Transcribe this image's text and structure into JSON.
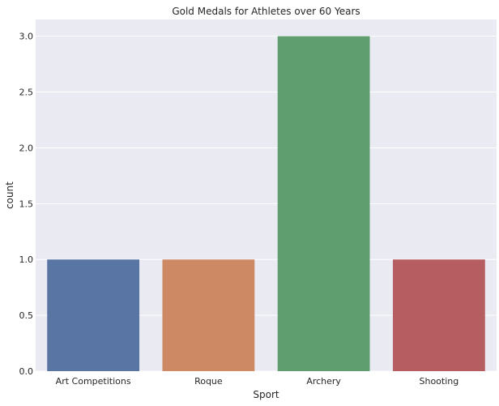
{
  "chart_data": {
    "type": "bar",
    "title": "Gold Medals for Athletes over 60 Years",
    "xlabel": "Sport",
    "ylabel": "count",
    "categories": [
      "Art Competitions",
      "Roque",
      "Archery",
      "Shooting"
    ],
    "values": [
      1,
      1,
      3,
      1
    ],
    "colors": [
      "#5975a4",
      "#cc8963",
      "#5f9e6e",
      "#b55d60"
    ],
    "ylim": [
      0,
      3.15
    ],
    "yticks": [
      "0.0",
      "0.5",
      "1.0",
      "1.5",
      "2.0",
      "2.5",
      "3.0"
    ],
    "grid": true,
    "legend": "none",
    "background": "#eaeaf2"
  }
}
